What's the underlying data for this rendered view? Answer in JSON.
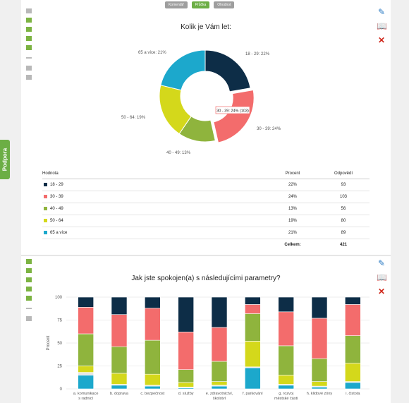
{
  "top_tabs": [
    "Komentář",
    "Průčka",
    "Ohodnot"
  ],
  "side_tab": "Podpora",
  "colors": {
    "c1": "#0d2d47",
    "c2": "#f36c6c",
    "c3": "#8fb43d",
    "c4": "#d4d81b",
    "c5": "#1ca8cc"
  },
  "chart_data": [
    {
      "type": "pie",
      "title": "Kolik je Vám let:",
      "labels": [
        "18 - 29",
        "30 - 39",
        "40 - 49",
        "50 - 64",
        "65 a více"
      ],
      "values": [
        22,
        24,
        13,
        19,
        21
      ],
      "slice_labels": [
        "18 - 29: 22%",
        "30 - 39: 24%",
        "40 - 49: 13%",
        "50 - 64: 19%",
        "65 a více: 21%"
      ],
      "tooltip": "30 - 39: 24% (103)",
      "table": {
        "headers": [
          "Hodnota",
          "Procent",
          "Odpovědí"
        ],
        "rows": [
          {
            "label": "18 - 29",
            "percent": "22%",
            "count": "93"
          },
          {
            "label": "30 - 39",
            "percent": "24%",
            "count": "103"
          },
          {
            "label": "40 - 49",
            "percent": "13%",
            "count": "56"
          },
          {
            "label": "50 - 64",
            "percent": "19%",
            "count": "80"
          },
          {
            "label": "65 a více",
            "percent": "21%",
            "count": "89"
          }
        ],
        "total_label": "Celkem:",
        "total_value": "421"
      }
    },
    {
      "type": "bar",
      "stacked": true,
      "title": "Jak jste spokojen(a) s následujícími parametry?",
      "ylabel": "Procent",
      "ylim": [
        0,
        100
      ],
      "yticks": [
        0,
        25,
        50,
        75,
        100
      ],
      "categories": [
        [
          "a. komunikace",
          "s radnicí"
        ],
        [
          "b. doprava"
        ],
        [
          "c. bezpečnost"
        ],
        [
          "d. služby"
        ],
        [
          "e. zdravotnictví,",
          "školství"
        ],
        [
          "f. parkování"
        ],
        [
          "g. rozvoj",
          "městské části"
        ],
        [
          "h. klidové zóny"
        ],
        [
          "i. čistota"
        ]
      ],
      "series": [
        {
          "values": [
            15,
            4,
            3,
            1,
            3,
            23,
            4,
            2,
            7
          ]
        },
        {
          "values": [
            3,
            1,
            1,
            1,
            1,
            1,
            1,
            1,
            1
          ]
        },
        {
          "values": [
            7,
            12,
            12,
            5,
            4,
            28,
            10,
            5,
            20
          ]
        },
        {
          "values": [
            35,
            29,
            37,
            14,
            22,
            30,
            32,
            25,
            30
          ]
        },
        {
          "values": [
            29,
            35,
            35,
            41,
            37,
            10,
            37,
            44,
            34
          ]
        },
        {
          "values": [
            11,
            19,
            12,
            38,
            33,
            8,
            16,
            23,
            8
          ]
        }
      ]
    }
  ]
}
